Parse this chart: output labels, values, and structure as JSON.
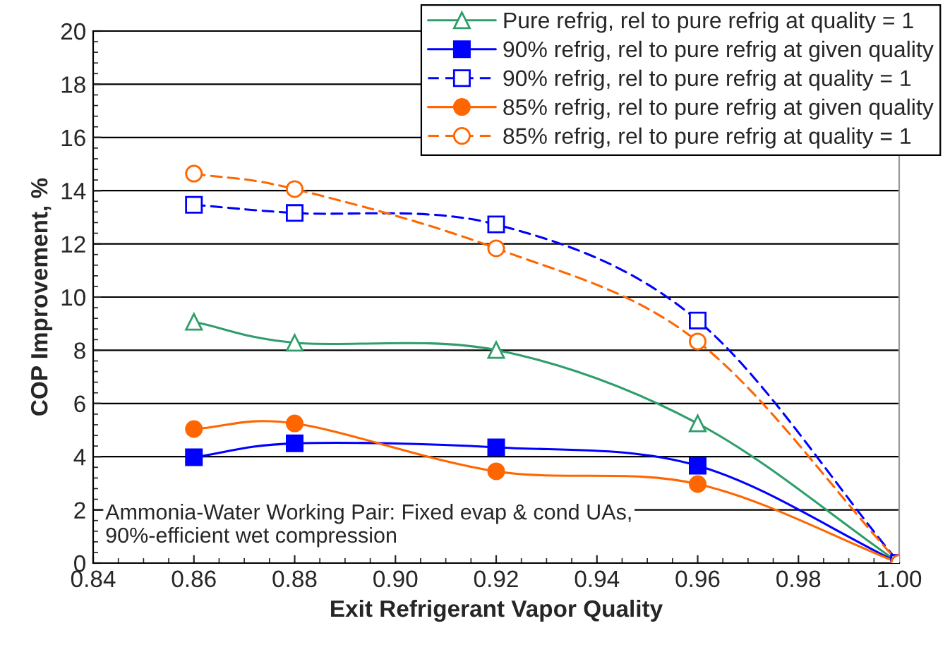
{
  "chart_data": {
    "type": "line",
    "xlabel": "Exit Refrigerant Vapor Quality",
    "ylabel": "COP Improvement, %",
    "x": [
      0.86,
      0.88,
      0.92,
      0.96,
      1.0
    ],
    "xlim": [
      0.84,
      1.0
    ],
    "xticks": [
      {
        "value": 0.84,
        "label": "0.84"
      },
      {
        "value": 0.86,
        "label": "0.86"
      },
      {
        "value": 0.88,
        "label": "0.88"
      },
      {
        "value": 0.9,
        "label": "0.90"
      },
      {
        "value": 0.92,
        "label": "0.92"
      },
      {
        "value": 0.94,
        "label": "0.94"
      },
      {
        "value": 0.96,
        "label": "0.96"
      },
      {
        "value": 0.98,
        "label": "0.98"
      },
      {
        "value": 1.0,
        "label": "1.00"
      }
    ],
    "ylim": [
      0,
      20
    ],
    "yticks": [
      0,
      2,
      4,
      6,
      8,
      10,
      12,
      14,
      16,
      18,
      20
    ],
    "grid": "y",
    "legend": "top right",
    "series": [
      {
        "name": "Pure refrig, rel to pure refrig at quality = 1",
        "color": "#2e9e6a",
        "marker": "triangle",
        "line_style": "solid",
        "values": [
          9.07,
          8.28,
          8.01,
          5.25,
          0
        ]
      },
      {
        "name": "90% refrig, rel to pure refrig at given quality",
        "color": "#0000ff",
        "marker": "square",
        "line_style": "solid",
        "values": [
          3.98,
          4.5,
          4.35,
          3.66,
          0
        ]
      },
      {
        "name": "90% refrig, rel to pure refrig at quality = 1",
        "color": "#0000ff",
        "marker": "square",
        "line_style": "dashed",
        "values": [
          13.47,
          13.16,
          12.73,
          9.12,
          0
        ]
      },
      {
        "name": "85% refrig, rel to pure refrig at given quality",
        "color": "#ff6600",
        "marker": "circle",
        "line_style": "solid",
        "values": [
          5.04,
          5.25,
          3.45,
          2.97,
          0
        ]
      },
      {
        "name": "85% refrig, rel to pure refrig at quality = 1",
        "color": "#ff6600",
        "marker": "circle",
        "line_style": "dashed",
        "values": [
          14.64,
          14.06,
          11.83,
          8.33,
          0
        ]
      }
    ],
    "annotations": [
      "Ammonia-Water Working Pair: Fixed evap & cond UAs,\n90%-efficient wet compression"
    ]
  }
}
